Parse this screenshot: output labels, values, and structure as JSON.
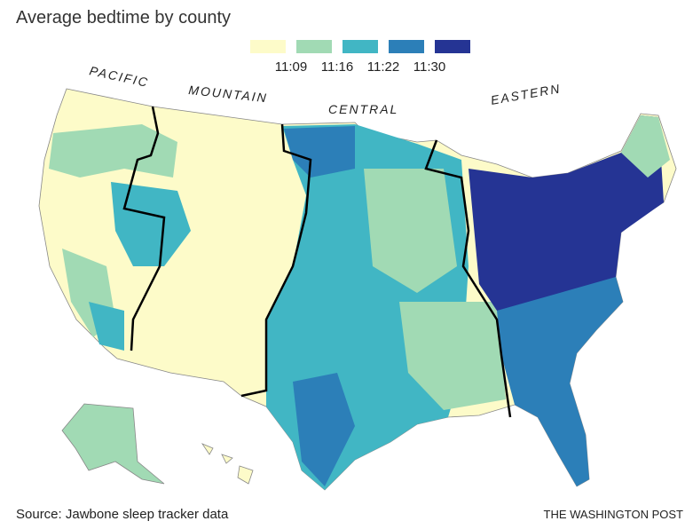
{
  "title": "Average bedtime by county",
  "legend": {
    "colors": [
      "#fdfbc9",
      "#a1dab4",
      "#41b6c4",
      "#2c7fb8",
      "#253494"
    ],
    "labels": [
      "11:09",
      "11:16",
      "11:22",
      "11:30"
    ]
  },
  "zones": [
    "PACIFIC",
    "MOUNTAIN",
    "CENTRAL",
    "EASTERN"
  ],
  "source": "Source: Jawbone sleep tracker data",
  "credit": "THE WASHINGTON POST"
}
